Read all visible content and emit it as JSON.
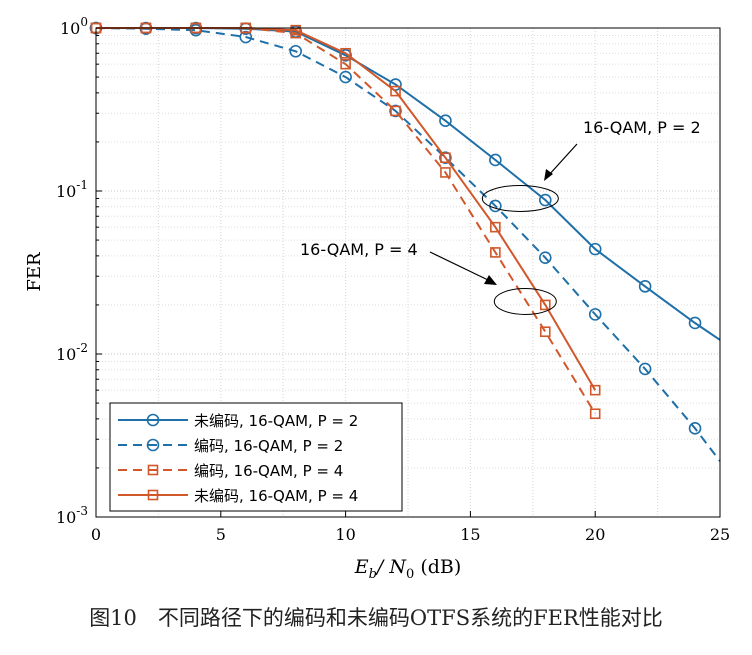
{
  "chart_data": {
    "type": "line",
    "title": "",
    "xlabel_main": "E",
    "xlabel_sub1": "b",
    "xlabel_slash": "/ N",
    "xlabel_sub2": "0",
    "xlabel_unit": " (dB)",
    "ylabel": "FER",
    "xlim": [
      0,
      25
    ],
    "ylim": [
      0.001,
      1
    ],
    "yscale": "log",
    "grid": true,
    "x_ticks": [
      0,
      5,
      10,
      15,
      20,
      25
    ],
    "y_ticks": [
      {
        "base": "10",
        "exp": "0",
        "value": 1
      },
      {
        "base": "10",
        "exp": "-1",
        "value": 0.1
      },
      {
        "base": "10",
        "exp": "-2",
        "value": 0.01
      },
      {
        "base": "10",
        "exp": "-3",
        "value": 0.001
      }
    ],
    "legend_position": "bottom-left",
    "series": [
      {
        "name": "未编码, 16-QAM, P = 2",
        "color": "#1f6fa8",
        "dash": "solid",
        "marker": "circle",
        "x": [
          0,
          2,
          4,
          6,
          8,
          10,
          12,
          14,
          16,
          18,
          20,
          22,
          24,
          25
        ],
        "y": [
          1.0,
          1.0,
          1.0,
          0.99,
          0.95,
          0.68,
          0.45,
          0.27,
          0.155,
          0.088,
          0.044,
          0.026,
          0.0155,
          0.0122
        ],
        "markers_x": [
          0,
          2,
          4,
          6,
          8,
          10,
          12,
          14,
          16,
          18,
          20,
          22,
          24
        ]
      },
      {
        "name": "编码, 16-QAM, P = 2",
        "color": "#1f6fa8",
        "dash": "dashed",
        "marker": "circle",
        "x": [
          0,
          2,
          4,
          6,
          8,
          10,
          12,
          14,
          16,
          18,
          20,
          22,
          24,
          25
        ],
        "y": [
          1.0,
          0.99,
          0.97,
          0.88,
          0.72,
          0.5,
          0.31,
          0.16,
          0.081,
          0.039,
          0.0175,
          0.0081,
          0.0035,
          0.0022
        ],
        "markers_x": [
          0,
          2,
          4,
          6,
          8,
          10,
          12,
          14,
          16,
          18,
          20,
          22,
          24
        ]
      },
      {
        "name": "编码, 16-QAM, P = 4",
        "color": "#d0582a",
        "dash": "dashed",
        "marker": "square",
        "x": [
          0,
          2,
          4,
          6,
          8,
          10,
          12,
          14,
          16,
          18,
          20
        ],
        "y": [
          1.0,
          1.0,
          1.0,
          1.0,
          0.93,
          0.6,
          0.31,
          0.13,
          0.042,
          0.0137,
          0.0043
        ],
        "markers_x": [
          0,
          2,
          4,
          6,
          8,
          10,
          12,
          14,
          16,
          18,
          20
        ]
      },
      {
        "name": "未编码, 16-QAM, P = 4",
        "color": "#d0582a",
        "dash": "solid",
        "marker": "square",
        "x": [
          0,
          2,
          4,
          6,
          8,
          10,
          12,
          14,
          16,
          18,
          20
        ],
        "y": [
          1.0,
          1.0,
          1.0,
          1.0,
          0.97,
          0.7,
          0.41,
          0.16,
          0.06,
          0.02,
          0.006
        ],
        "markers_x": [
          0,
          2,
          4,
          6,
          8,
          10,
          12,
          14,
          16,
          18,
          20
        ]
      }
    ],
    "annotations": [
      {
        "text": "16-QAM, P = 2",
        "ellipse_center": [
          17,
          0.09
        ]
      },
      {
        "text": "16-QAM, P = 4",
        "ellipse_center": [
          17.2,
          0.021
        ]
      }
    ]
  },
  "caption": "图10　不同路径下的编码和未编码OTFS系统的FER性能对比"
}
